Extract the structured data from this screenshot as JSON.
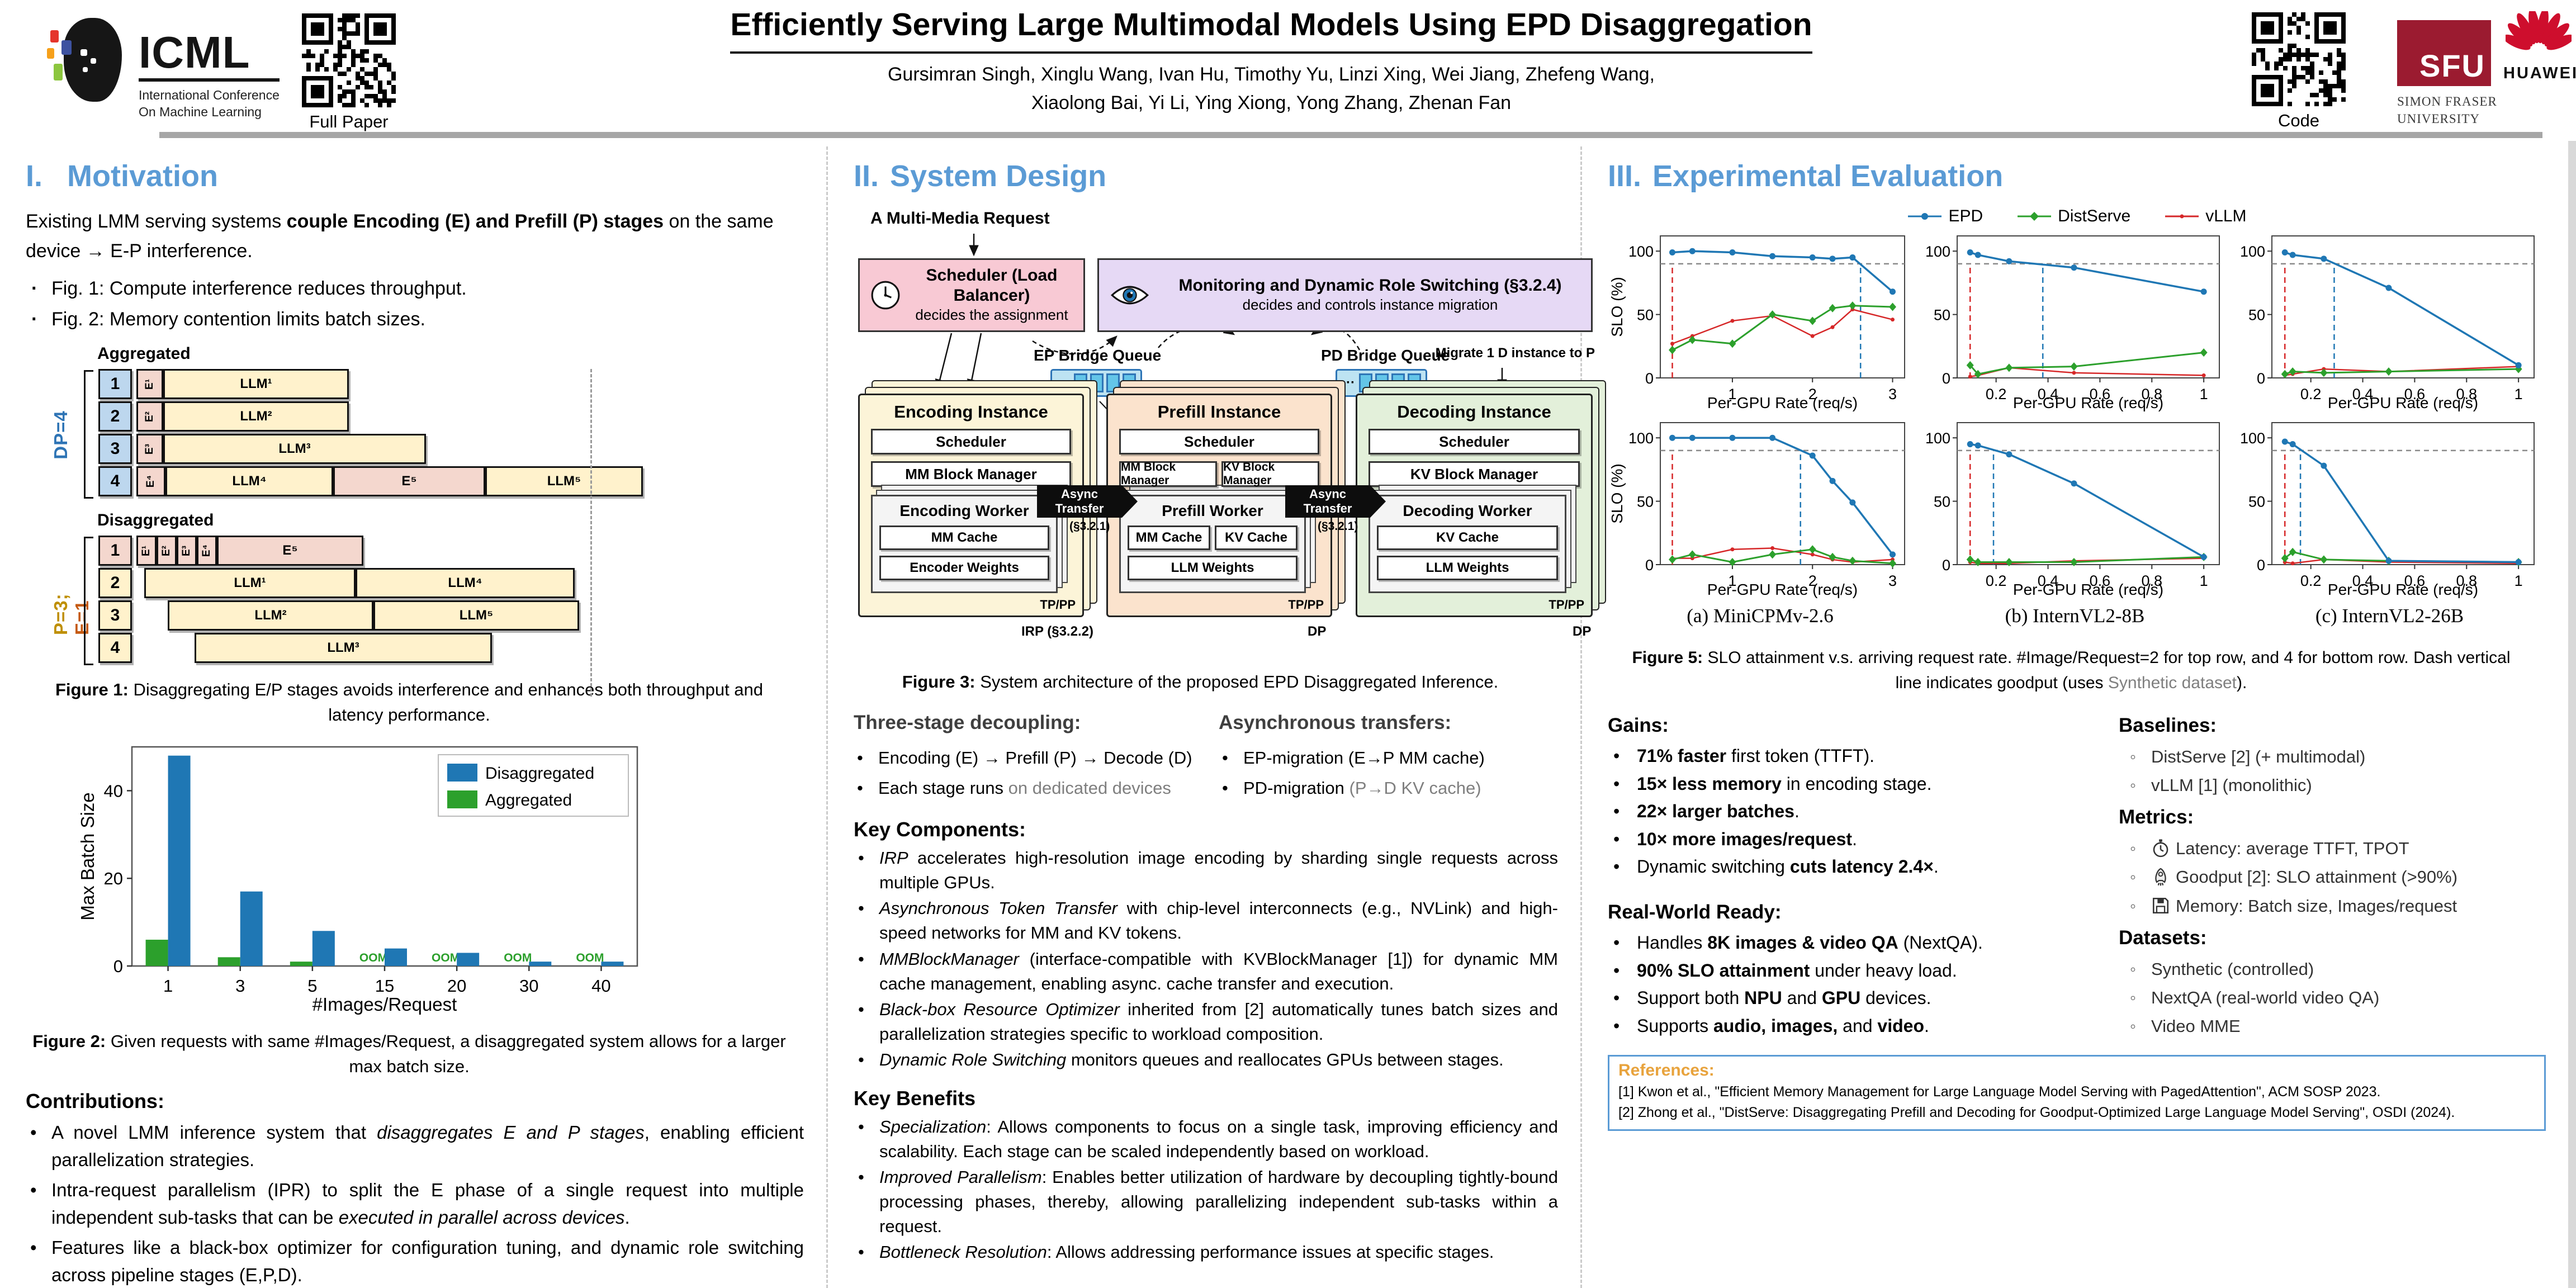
{
  "header": {
    "icml_acronym": "ICML",
    "icml_line1": "International Conference",
    "icml_line2": "On Machine Learning",
    "qr_paper_label": "Full Paper",
    "title": "Efficiently Serving Large Multimodal Models Using EPD Disaggregation",
    "authors_line1": "Gursimran Singh, Xinglu Wang, Ivan Hu, Timothy Yu, Linzi Xing, Wei Jiang, Zhefeng Wang,",
    "authors_line2": "Xiaolong Bai, Yi Li, Ying Xiong, Yong Zhang, Zhenan Fan",
    "qr_code_label": "Code",
    "sfu_acronym": "SFU",
    "sfu_line1": "SIMON FRASER",
    "sfu_line2": "UNIVERSITY",
    "huawei_label": "HUAWEI"
  },
  "motivation": {
    "heading_num": "I.",
    "heading": "Motivation",
    "intro_pre": "Existing LMM serving systems ",
    "intro_bold": "couple Encoding (E) and Prefill (P) stages",
    "intro_post": " on the same device → E-P interference.",
    "bullets": [
      "Fig. 1: Compute interference reduces throughput.",
      "Fig. 2: Memory contention limits batch sizes."
    ],
    "contributions_heading": "Contributions:",
    "contributions": [
      {
        "pre": "A novel LMM inference system that ",
        "italic": "disaggregates E and P stages",
        "post": ", enabling efficient parallelization strategies."
      },
      {
        "pre": "Intra-request parallelism (IPR) to split the E phase of a single request into multiple independent sub-tasks that can be ",
        "italic": "executed in parallel across devices",
        "post": "."
      },
      {
        "pre": "Features like a black-box optimizer for configuration tuning, and dynamic role switching across pipeline stages (E,P,D).",
        "italic": "",
        "post": ""
      }
    ]
  },
  "figure1": {
    "aggregated_label": "Aggregated",
    "disaggregated_label": "Disaggregated",
    "dp_label": "DP=4",
    "pe_label_p": "P=3; ",
    "pe_label_e": "E=1",
    "agg_rows": [
      {
        "num": "1",
        "e": "E¹",
        "llm": "LLM¹"
      },
      {
        "num": "2",
        "e": "E²",
        "llm": "LLM²"
      },
      {
        "num": "3",
        "e": "E³",
        "llm": "LLM³"
      },
      {
        "num": "4",
        "e": "E⁴",
        "llm": "LLM⁴",
        "e5": "E⁵",
        "llm5": "LLM⁵"
      }
    ],
    "disagg_row1": {
      "num": "1",
      "e1": "E¹",
      "e2": "E²",
      "e3": "E³",
      "e4": "E⁴",
      "e5": "E⁵"
    },
    "disagg_rows": [
      {
        "num": "2",
        "a": "LLM¹",
        "b": "LLM⁴"
      },
      {
        "num": "3",
        "a": "LLM²",
        "b": "LLM⁵"
      },
      {
        "num": "4",
        "a": "LLM³"
      }
    ],
    "caption_bold": "Figure 1:",
    "caption_rest": " Disaggregating E/P stages avoids interference and enhances both throughput and latency performance."
  },
  "figure2_caption": {
    "bold": "Figure 2:",
    "rest": " Given requests with same #Images/Request, a disaggregated system allows for a larger max batch size."
  },
  "system": {
    "heading_num": "II.",
    "heading": "System Design",
    "request_label": "A Multi-Media Request",
    "scheduler_title": "Scheduler (Load Balancer)",
    "scheduler_sub": "decides the assignment",
    "monitor_title": "Monitoring and Dynamic Role Switching (§3.2.4)",
    "monitor_sub": "decides and controls instance migration",
    "ep_queue_label": "EP Bridge Queue",
    "pd_queue_label": "PD Bridge Queue",
    "migrate_label": "Migrate 1 D instance to P",
    "encoding": {
      "title": "Encoding Instance",
      "scheduler": "Scheduler",
      "manager": "MM Block Manager",
      "worker": "Encoding Worker",
      "cache": "MM Cache",
      "weights": "Encoder Weights",
      "tp": "TP/PP",
      "below": "IRP (§3.2.2)"
    },
    "prefill": {
      "title": "Prefill Instance",
      "scheduler": "Scheduler",
      "manager1": "MM Block Manager",
      "manager2": "KV Block Manager",
      "worker": "Prefill Worker",
      "cache1": "MM Cache",
      "cache2": "KV Cache",
      "weights": "LLM Weights",
      "tp": "TP/PP",
      "below": "DP"
    },
    "decoding": {
      "title": "Decoding Instance",
      "scheduler": "Scheduler",
      "manager": "KV Block Manager",
      "worker": "Decoding Worker",
      "cache": "KV Cache",
      "weights": "LLM Weights",
      "tp": "TP/PP",
      "below": "DP"
    },
    "async_label": "Async Transfer",
    "async_sub": "(§3.2.1)",
    "fig3_caption_bold": "Figure 3:",
    "fig3_caption_rest": " System architecture of the proposed EPD Disaggregated Inference.",
    "three_stage_heading": "Three-stage decoupling:",
    "three_stage_b1": "Encoding (E) → Prefill (P) → Decode (D)",
    "three_stage_b2_pre": "Each stage runs ",
    "three_stage_b2_gray": "on dedicated devices",
    "async_heading": "Asynchronous transfers:",
    "async_b1": "EP-migration (E→P MM cache)",
    "async_b2_pre": "PD-migration ",
    "async_b2_gray": "(P→D KV cache)",
    "key_components_heading": "Key Components:",
    "key_components": [
      {
        "it": "IRP",
        "rest": " accelerates  high-resolution image encoding by sharding single requests across multiple GPUs."
      },
      {
        "it": "Asynchronous Token Transfer",
        "rest": " with chip-level interconnects (e.g., NVLink) and high-speed networks for MM and KV tokens."
      },
      {
        "it": "MMBlockManager",
        "rest": " (interface-compatible with KVBlockManager [1]) for dynamic MM cache management, enabling async. cache transfer and execution."
      },
      {
        "it": "Black-box Resource Optimizer",
        "rest": " inherited from [2] automatically tunes batch sizes and parallelization strategies specific to workload composition."
      },
      {
        "it": "Dynamic Role Switching",
        "rest": " monitors queues and reallocates GPUs between stages."
      }
    ],
    "key_benefits_heading": "Key Benefits",
    "key_benefits": [
      {
        "it": "Specialization",
        "rest": ": Allows components to focus on a single task, improving efficiency and scalability. Each stage can be scaled independently based on workload."
      },
      {
        "it": "Improved Parallelism",
        "rest": ": Enables better utilization of hardware by decoupling tightly-bound processing phases, thereby, allowing parallelizing independent sub-tasks within a request."
      },
      {
        "it": "Bottleneck Resolution",
        "rest": ": Allows addressing performance issues at specific stages."
      }
    ]
  },
  "evaluation": {
    "heading_num": "III.",
    "heading": "Experimental Evaluation",
    "plot_captions": [
      "(a) MiniCPMv-2.6",
      "(b) InternVL2-8B",
      "(c) InternVL2-26B"
    ],
    "fig5_caption": {
      "bold": "Figure 5:",
      "mid": " SLO attainment v.s. arriving request rate. #Image/Request=2 for top row, and 4 for bottom row. Dash vertical line indicates goodput (uses ",
      "gray": "Synthetic dataset",
      "end": ")."
    },
    "gains_heading": "Gains:",
    "gains": [
      {
        "pre": "",
        "bold": "71% faster",
        "rest": " first token (TTFT)."
      },
      {
        "pre": "",
        "bold": "15× less memory",
        "rest": " in encoding stage."
      },
      {
        "pre": "",
        "bold": "22× larger batches",
        "rest": "."
      },
      {
        "pre": "",
        "bold": "10× more images/request",
        "rest": "."
      },
      {
        "pre": "Dynamic switching ",
        "bold": "cuts latency 2.4×",
        "rest": "."
      }
    ],
    "real_world_heading": "Real-World Ready:",
    "real_world": [
      {
        "pre": "Handles ",
        "bold": "8K images & video QA",
        "mid": "",
        "bold2": "",
        "rest": " (NextQA)."
      },
      {
        "pre": "",
        "bold": "90% SLO attainment",
        "mid": "",
        "bold2": "",
        "rest": " under heavy load."
      },
      {
        "pre": "Support both ",
        "bold": "NPU",
        "mid": " and ",
        "bold2": "GPU",
        "rest": " devices."
      },
      {
        "pre": "Supports ",
        "bold": "audio, images,",
        "mid": " and ",
        "bold2": "video",
        "rest": "."
      }
    ],
    "baselines_heading": "Baselines:",
    "baselines": [
      "DistServe [2] (+ multimodal)",
      "vLLM [1] (monolithic)"
    ],
    "metrics_heading": "Metrics:",
    "metrics": [
      {
        "icon": "stopwatch-icon",
        "text": "Latency: average TTFT, TPOT"
      },
      {
        "icon": "rocket-icon",
        "text": "Goodput [2]: SLO attainment (>90%)"
      },
      {
        "icon": "floppy-icon",
        "text": "Memory: Batch size, Images/request"
      }
    ],
    "datasets_heading": "Datasets:",
    "datasets": [
      "Synthetic (controlled)",
      "NextQA (real-world video QA)",
      "Video MME"
    ],
    "references_heading": "References:",
    "references": [
      "[1] Kwon et al., \"Efficient Memory Management for Large Language Model Serving with PagedAttention\", ACM SOSP 2023.",
      "[2] Zhong et al., \"DistServe: Disaggregating Prefill and Decoding for Goodput-Optimized Large Language Model Serving\", OSDI (2024)."
    ]
  },
  "chart_data": [
    {
      "id": "figure2",
      "type": "bar",
      "categories": [
        "1",
        "3",
        "5",
        "15",
        "20",
        "30",
        "40"
      ],
      "series": [
        {
          "name": "Disaggregated",
          "color": "#1f77b4",
          "values": [
            48,
            17,
            8,
            4,
            3,
            1,
            1
          ]
        },
        {
          "name": "Aggregated",
          "color": "#2ca02c",
          "values": [
            6,
            2,
            1,
            0,
            0,
            0,
            0
          ]
        }
      ],
      "oom_label": "OOM",
      "xlabel": "#Images/Request",
      "ylabel": "Max Batch Size",
      "yticks": [
        0,
        20,
        40
      ],
      "ylim": [
        0,
        50
      ],
      "legend_position": "upper right"
    },
    {
      "id": "figure5",
      "type": "line",
      "xlabel": "Per-GPU Rate (req/s)",
      "ylabel": "SLO (%)",
      "slo_line": 90,
      "colors": {
        "epd": "#1f77b4",
        "distserve": "#2ca02c",
        "vllm": "#d62728"
      },
      "legend": [
        "EPD",
        "DistServe",
        "vLLM"
      ],
      "plots": [
        {
          "row": "top",
          "model": "MiniCPMv-2.6",
          "images_per_request": 2,
          "xlim": [
            0.1,
            3.15
          ],
          "xticks": [
            1,
            2,
            3
          ],
          "x": [
            0.25,
            0.5,
            1.0,
            1.5,
            2.0,
            2.25,
            2.5,
            3.0
          ],
          "epd": [
            99,
            100,
            99,
            96,
            95,
            94,
            95,
            68
          ],
          "distserve": [
            22,
            30,
            27,
            50,
            45,
            55,
            57,
            56
          ],
          "vllm": [
            27,
            33,
            45,
            49,
            33,
            40,
            54,
            46
          ],
          "red_dash_x": 0.25,
          "blue_dash_x": 2.6
        },
        {
          "row": "top",
          "model": "InternVL2-8B",
          "images_per_request": 2,
          "xlim": [
            0.05,
            1.06
          ],
          "xticks": [
            0.2,
            0.4,
            0.6,
            0.8,
            1.0
          ],
          "x": [
            0.1,
            0.13,
            0.25,
            0.5,
            1.0
          ],
          "epd": [
            99,
            97,
            92,
            87,
            68
          ],
          "distserve": [
            10,
            3,
            8,
            9,
            20
          ],
          "vllm": [
            1,
            2,
            8,
            4,
            2
          ],
          "red_dash_x": 0.1,
          "blue_dash_x": 0.38
        },
        {
          "row": "top",
          "model": "InternVL2-26B",
          "images_per_request": 2,
          "xlim": [
            0.05,
            1.06
          ],
          "xticks": [
            0.2,
            0.4,
            0.6,
            0.8,
            1.0
          ],
          "x": [
            0.1,
            0.13,
            0.25,
            0.5,
            1.0
          ],
          "epd": [
            99,
            97,
            94,
            71,
            10
          ],
          "distserve": [
            3,
            5,
            4,
            5,
            7
          ],
          "vllm": [
            2,
            3,
            7,
            5,
            9
          ],
          "red_dash_x": 0.1,
          "blue_dash_x": 0.29
        },
        {
          "row": "bottom",
          "model": "MiniCPMv-2.6",
          "images_per_request": 4,
          "xlim": [
            0.1,
            3.15
          ],
          "xticks": [
            1,
            2,
            3
          ],
          "x": [
            0.25,
            0.5,
            1.0,
            1.5,
            2.0,
            2.25,
            2.5,
            3.0
          ],
          "epd": [
            100,
            100,
            100,
            100,
            86,
            66,
            49,
            8
          ],
          "distserve": [
            4,
            8,
            2,
            8,
            12,
            6,
            3,
            1
          ],
          "vllm": [
            5,
            5,
            12,
            13,
            8,
            4,
            2,
            4
          ],
          "red_dash_x": 0.25,
          "blue_dash_x": 1.85
        },
        {
          "row": "bottom",
          "model": "InternVL2-8B",
          "images_per_request": 4,
          "xlim": [
            0.05,
            1.06
          ],
          "xticks": [
            0.2,
            0.4,
            0.6,
            0.8,
            1.0
          ],
          "x": [
            0.1,
            0.13,
            0.25,
            0.5,
            1.0
          ],
          "epd": [
            95,
            94,
            87,
            64,
            6
          ],
          "distserve": [
            4,
            2,
            2,
            2,
            6
          ],
          "vllm": [
            2,
            1,
            1,
            3,
            5
          ],
          "red_dash_x": 0.1,
          "blue_dash_x": 0.19
        },
        {
          "row": "bottom",
          "model": "InternVL2-26B",
          "images_per_request": 4,
          "xlim": [
            0.05,
            1.06
          ],
          "xticks": [
            0.2,
            0.4,
            0.6,
            0.8,
            1.0
          ],
          "x": [
            0.1,
            0.13,
            0.25,
            0.5,
            1.0
          ],
          "epd": [
            97,
            95,
            78,
            3,
            2
          ],
          "distserve": [
            5,
            10,
            4,
            3,
            2
          ],
          "vllm": [
            2,
            1,
            4,
            2,
            1
          ],
          "red_dash_x": 0.1,
          "blue_dash_x": 0.16
        }
      ]
    }
  ]
}
